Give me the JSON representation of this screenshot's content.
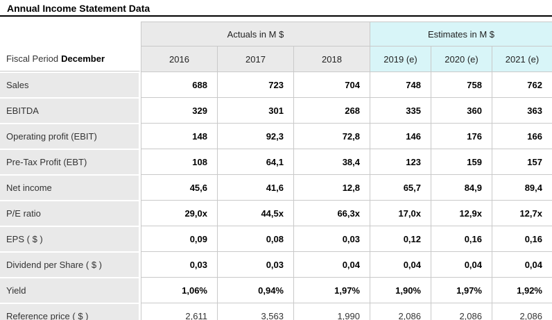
{
  "title": "Annual Income Statement Data",
  "fiscal_period": {
    "label": "Fiscal Period",
    "value": "December"
  },
  "chart_data": {
    "type": "table",
    "title": "Annual Income Statement Data",
    "column_groups": [
      {
        "label": "Actuals in M $",
        "span": 3,
        "type": "actual"
      },
      {
        "label": "Estimates in M $",
        "span": 3,
        "type": "estimate"
      }
    ],
    "columns": [
      "2016",
      "2017",
      "2018",
      "2019 (e)",
      "2020 (e)",
      "2021 (e)"
    ],
    "column_types": [
      "actual",
      "actual",
      "actual",
      "estimate",
      "estimate",
      "estimate"
    ],
    "rows": [
      {
        "label": "Sales",
        "values": [
          "688",
          "723",
          "704",
          "748",
          "758",
          "762"
        ],
        "bold": true
      },
      {
        "label": "EBITDA",
        "values": [
          "329",
          "301",
          "268",
          "335",
          "360",
          "363"
        ],
        "bold": true
      },
      {
        "label": "Operating profit (EBIT)",
        "values": [
          "148",
          "92,3",
          "72,8",
          "146",
          "176",
          "166"
        ],
        "bold": true
      },
      {
        "label": "Pre-Tax Profit (EBT)",
        "values": [
          "108",
          "64,1",
          "38,4",
          "123",
          "159",
          "157"
        ],
        "bold": true
      },
      {
        "label": "Net income",
        "values": [
          "45,6",
          "41,6",
          "12,8",
          "65,7",
          "84,9",
          "89,4"
        ],
        "bold": true
      },
      {
        "label": "P/E ratio",
        "values": [
          "29,0x",
          "44,5x",
          "66,3x",
          "17,0x",
          "12,9x",
          "12,7x"
        ],
        "bold": true
      },
      {
        "label": "EPS ( $ )",
        "values": [
          "0,09",
          "0,08",
          "0,03",
          "0,12",
          "0,16",
          "0,16"
        ],
        "bold": true
      },
      {
        "label": "Dividend per Share ( $ )",
        "values": [
          "0,03",
          "0,03",
          "0,04",
          "0,04",
          "0,04",
          "0,04"
        ],
        "bold": true
      },
      {
        "label": "Yield",
        "values": [
          "1,06%",
          "0,94%",
          "1,97%",
          "1,90%",
          "1,97%",
          "1,92%"
        ],
        "bold": true
      },
      {
        "label": "Reference price ( $ )",
        "values": [
          "2,611",
          "3,563",
          "1,990",
          "2,086",
          "2,086",
          "2,086"
        ],
        "bold": false
      }
    ]
  },
  "colors": {
    "estimate_bg": "#d8f5f8",
    "header_bg": "#eaeaea",
    "label_bg": "#e9e9e9",
    "border": "#c9c9c9",
    "title_rule": "#000000"
  }
}
